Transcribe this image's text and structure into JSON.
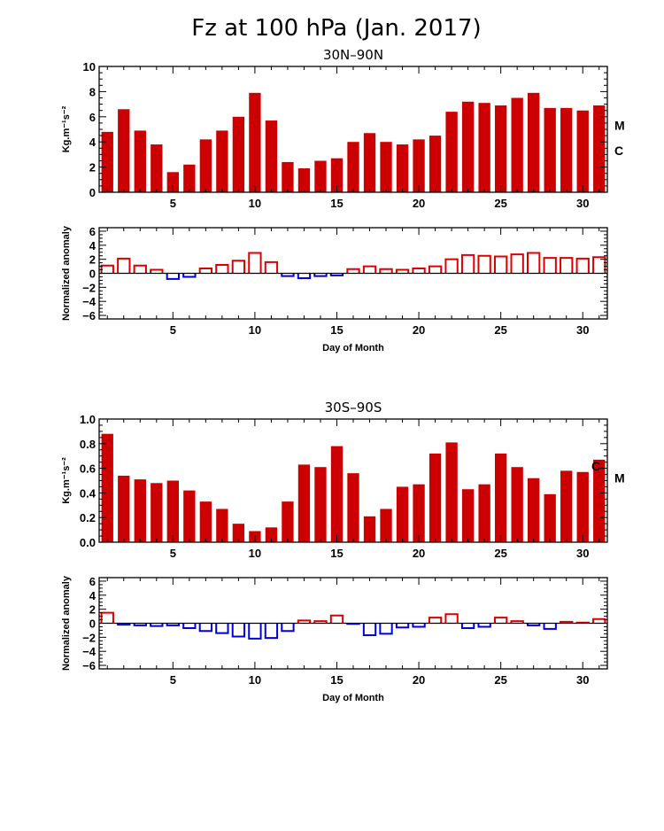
{
  "figure": {
    "title": "Fz at 100 hPa (Jan. 2017)"
  },
  "colors": {
    "fill_bar": "#cc0000",
    "anomaly_positive": "#dd0000",
    "anomaly_negative": "#0000dd",
    "axis": "#000000"
  },
  "chart_data": [
    {
      "id": "nh-flux",
      "type": "bar",
      "title": "30N–90N",
      "ylabel": "Kg.m⁻¹s⁻²",
      "xlabel": "",
      "ylim": [
        0,
        10
      ],
      "yticks": [
        "0",
        "2",
        "4",
        "6",
        "8",
        "10"
      ],
      "xlim": [
        0.5,
        31.5
      ],
      "xticks": [
        "5",
        "10",
        "15",
        "20",
        "25",
        "30"
      ],
      "x": [
        1,
        2,
        3,
        4,
        5,
        6,
        7,
        8,
        9,
        10,
        11,
        12,
        13,
        14,
        15,
        16,
        17,
        18,
        19,
        20,
        21,
        22,
        23,
        24,
        25,
        26,
        27,
        28,
        29,
        30,
        31
      ],
      "values": [
        4.8,
        6.6,
        4.9,
        3.8,
        1.6,
        2.2,
        4.2,
        4.9,
        6.0,
        7.9,
        5.7,
        2.4,
        1.9,
        2.5,
        2.7,
        4.0,
        4.7,
        4.0,
        3.8,
        4.2,
        4.5,
        6.4,
        7.2,
        7.1,
        6.9,
        7.5,
        7.9,
        6.7,
        6.7,
        6.5,
        6.9
      ],
      "markers": [
        {
          "label": "M",
          "y": 5.3
        },
        {
          "label": "C",
          "y": 3.3
        }
      ],
      "grid": false
    },
    {
      "id": "nh-anomaly",
      "type": "bar",
      "title": "",
      "ylabel": "Normalized anomaly",
      "xlabel": "Day of Month",
      "ylim": [
        -6.5,
        6.5
      ],
      "yticks": [
        "6",
        "4",
        "2",
        "0",
        "−2",
        "−4",
        "−6"
      ],
      "xlim": [
        0.5,
        31.5
      ],
      "xticks": [
        "5",
        "10",
        "15",
        "20",
        "25",
        "30"
      ],
      "x": [
        1,
        2,
        3,
        4,
        5,
        6,
        7,
        8,
        9,
        10,
        11,
        12,
        13,
        14,
        15,
        16,
        17,
        18,
        19,
        20,
        21,
        22,
        23,
        24,
        25,
        26,
        27,
        28,
        29,
        30,
        31
      ],
      "values": [
        1.1,
        2.1,
        1.1,
        0.5,
        -0.8,
        -0.5,
        0.7,
        1.2,
        1.8,
        2.9,
        1.6,
        -0.4,
        -0.7,
        -0.4,
        -0.3,
        0.6,
        1.0,
        0.6,
        0.5,
        0.7,
        1.0,
        2.0,
        2.6,
        2.5,
        2.4,
        2.7,
        2.9,
        2.2,
        2.2,
        2.1,
        2.3
      ],
      "grid": false
    },
    {
      "id": "sh-flux",
      "type": "bar",
      "title": "30S–90S",
      "ylabel": "Kg.m⁻¹s⁻²",
      "xlabel": "",
      "ylim": [
        0,
        1.0
      ],
      "yticks": [
        "0.0",
        "0.2",
        "0.4",
        "0.6",
        "0.8",
        "1.0"
      ],
      "xlim": [
        0.5,
        31.5
      ],
      "xticks": [
        "5",
        "10",
        "15",
        "20",
        "25",
        "30"
      ],
      "x": [
        1,
        2,
        3,
        4,
        5,
        6,
        7,
        8,
        9,
        10,
        11,
        12,
        13,
        14,
        15,
        16,
        17,
        18,
        19,
        20,
        21,
        22,
        23,
        24,
        25,
        26,
        27,
        28,
        29,
        30,
        31
      ],
      "values": [
        0.88,
        0.54,
        0.51,
        0.48,
        0.5,
        0.42,
        0.33,
        0.27,
        0.15,
        0.09,
        0.12,
        0.33,
        0.63,
        0.61,
        0.78,
        0.56,
        0.21,
        0.27,
        0.45,
        0.47,
        0.72,
        0.81,
        0.43,
        0.47,
        0.72,
        0.61,
        0.52,
        0.39,
        0.58,
        0.57,
        0.67
      ],
      "markers": [
        {
          "label": "C",
          "y": 0.62
        },
        {
          "label": "M",
          "y": 0.52
        }
      ],
      "grid": false
    },
    {
      "id": "sh-anomaly",
      "type": "bar",
      "title": "",
      "ylabel": "Normalized anomaly",
      "xlabel": "Day of Month",
      "ylim": [
        -6.5,
        6.5
      ],
      "yticks": [
        "6",
        "4",
        "2",
        "0",
        "−2",
        "−4",
        "−6"
      ],
      "xlim": [
        0.5,
        31.5
      ],
      "xticks": [
        "5",
        "10",
        "15",
        "20",
        "25",
        "30"
      ],
      "x": [
        1,
        2,
        3,
        4,
        5,
        6,
        7,
        8,
        9,
        10,
        11,
        12,
        13,
        14,
        15,
        16,
        17,
        18,
        19,
        20,
        21,
        22,
        23,
        24,
        25,
        26,
        27,
        28,
        29,
        30,
        31
      ],
      "values": [
        1.5,
        -0.2,
        -0.3,
        -0.4,
        -0.3,
        -0.7,
        -1.1,
        -1.4,
        -1.9,
        -2.2,
        -2.1,
        -1.1,
        0.4,
        0.3,
        1.1,
        -0.1,
        -1.7,
        -1.5,
        -0.6,
        -0.5,
        0.8,
        1.3,
        -0.7,
        -0.5,
        0.8,
        0.3,
        -0.3,
        -0.8,
        0.2,
        0.1,
        0.6
      ],
      "grid": false
    }
  ]
}
